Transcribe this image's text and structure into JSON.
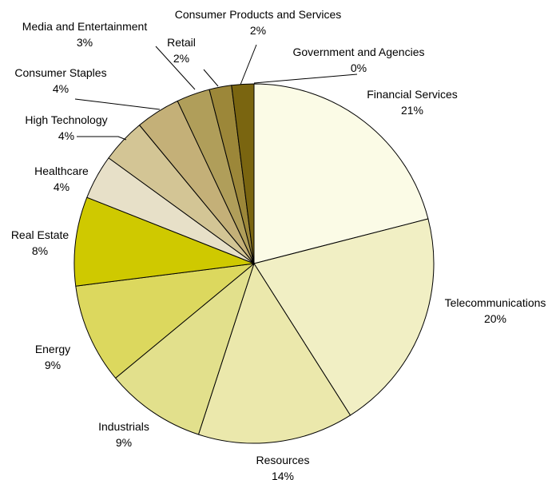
{
  "chart_data": {
    "type": "pie",
    "start_angle_deg": 90,
    "direction": "clockwise",
    "slices": [
      {
        "label": "Financial Services",
        "pct_label": "21%",
        "value": 21,
        "color": "#fbfbe6"
      },
      {
        "label": "Telecommunications",
        "pct_label": "20%",
        "value": 20,
        "color": "#f1efc4"
      },
      {
        "label": "Resources",
        "pct_label": "14%",
        "value": 14,
        "color": "#ebe8ac"
      },
      {
        "label": "Industrials",
        "pct_label": "9%",
        "value": 9,
        "color": "#e2e08c"
      },
      {
        "label": "Energy",
        "pct_label": "9%",
        "value": 9,
        "color": "#dcd85e"
      },
      {
        "label": "Real Estate",
        "pct_label": "8%",
        "value": 8,
        "color": "#cfc900"
      },
      {
        "label": "Healthcare",
        "pct_label": "4%",
        "value": 4,
        "color": "#e7e0c8"
      },
      {
        "label": "High Technology",
        "pct_label": "4%",
        "value": 4,
        "color": "#d3c595"
      },
      {
        "label": "Consumer Staples",
        "pct_label": "4%",
        "value": 4,
        "color": "#c4b078"
      },
      {
        "label": "Media and Entertainment",
        "pct_label": "3%",
        "value": 3,
        "color": "#b09e5a"
      },
      {
        "label": "Retail",
        "pct_label": "2%",
        "value": 2,
        "color": "#9c8739"
      },
      {
        "label": "Consumer Products and Services",
        "pct_label": "2%",
        "value": 2,
        "color": "#7a6510"
      },
      {
        "label": "Government and Agencies",
        "pct_label": "0%",
        "value": 0,
        "color": "#7a6510"
      }
    ]
  }
}
